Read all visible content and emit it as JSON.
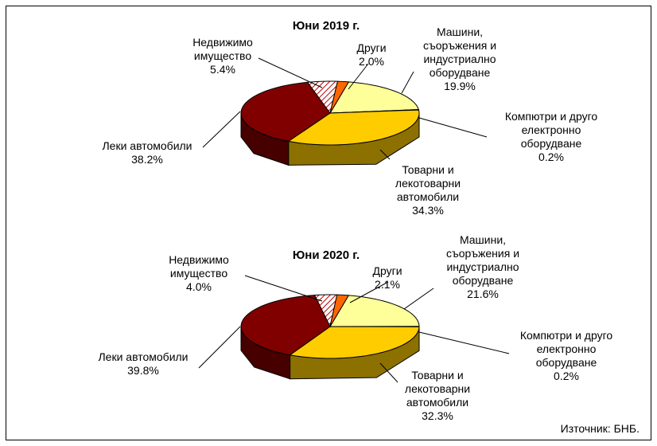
{
  "chart_data": [
    {
      "type": "pie",
      "title": "Юни 2019 г.",
      "categories": [
        "Машини,\nсъоръжения и\nиндустриално\nоборудване",
        "Компютри и друго\nелектронно\nоборудване",
        "Товарни и\nлекотоварни\nавтомобили",
        "Леки автомобили",
        "Недвижимо\nимущество",
        "Други"
      ],
      "values": [
        19.9,
        0.2,
        34.3,
        38.2,
        5.4,
        2.0
      ],
      "value_labels": [
        "19.9%",
        "0.2%",
        "34.3%",
        "38.2%",
        "5.4%",
        "2.0%"
      ],
      "colors": [
        "#ffff99",
        "#ffffcc",
        "#ffcc00",
        "#800000",
        "#c00000",
        "#ff6600"
      ],
      "hatch": [
        false,
        false,
        false,
        false,
        true,
        false
      ]
    },
    {
      "type": "pie",
      "title": "Юни 2020 г.",
      "categories": [
        "Машини,\nсъоръжения и\nиндустриално\nоборудване",
        "Компютри и друго\nелектронно\nоборудване",
        "Товарни и\nлекотоварни\nавтомобили",
        "Леки автомобили",
        "Недвижимо\nимущество",
        "Други"
      ],
      "values": [
        21.6,
        0.2,
        32.3,
        39.8,
        4.0,
        2.1
      ],
      "value_labels": [
        "21.6%",
        "0.2%",
        "32.3%",
        "39.8%",
        "4.0%",
        "2.1%"
      ],
      "colors": [
        "#ffff99",
        "#ffffcc",
        "#ffcc00",
        "#800000",
        "#c00000",
        "#ff6600"
      ],
      "hatch": [
        false,
        false,
        false,
        false,
        true,
        false
      ]
    }
  ],
  "source": "Източник: БНБ."
}
